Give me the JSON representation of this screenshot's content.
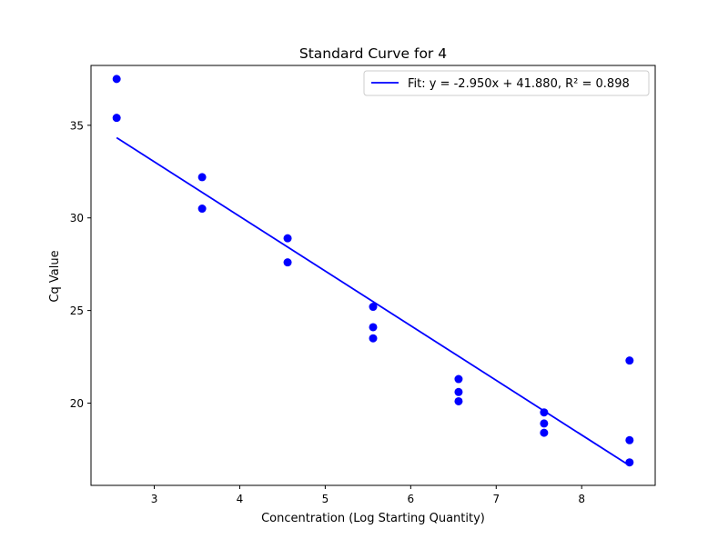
{
  "chart_data": {
    "type": "scatter",
    "title": "Standard Curve for 4",
    "xlabel": "Concentration (Log Starting Quantity)",
    "ylabel": "Cq Value",
    "xlim": [
      2.26,
      8.86
    ],
    "ylim": [
      15.56,
      38.23
    ],
    "xticks": [
      3,
      4,
      5,
      6,
      7,
      8
    ],
    "yticks": [
      20,
      25,
      30,
      35
    ],
    "grid": false,
    "legend_position": "top-right",
    "colors": {
      "points": "#0000ff",
      "fit_line": "#0000ff",
      "axes": "#000000",
      "legend_border": "#cccccc"
    },
    "series": [
      {
        "kind": "scatter",
        "x": [
          2.56,
          2.56,
          3.56,
          3.56,
          4.56,
          4.56,
          5.56,
          5.56,
          5.56,
          6.56,
          6.56,
          6.56,
          7.56,
          7.56,
          7.56,
          8.56,
          8.56,
          8.56
        ],
        "y": [
          37.5,
          35.4,
          32.2,
          30.5,
          28.9,
          27.6,
          25.2,
          24.1,
          23.5,
          21.3,
          20.6,
          20.1,
          19.5,
          18.9,
          18.4,
          22.3,
          18.0,
          16.8
        ]
      },
      {
        "kind": "line",
        "name": "Fit: y = -2.950x + 41.880, R² = 0.898",
        "slope": -2.95,
        "intercept": 41.88,
        "x": [
          2.56,
          8.56
        ]
      }
    ]
  }
}
